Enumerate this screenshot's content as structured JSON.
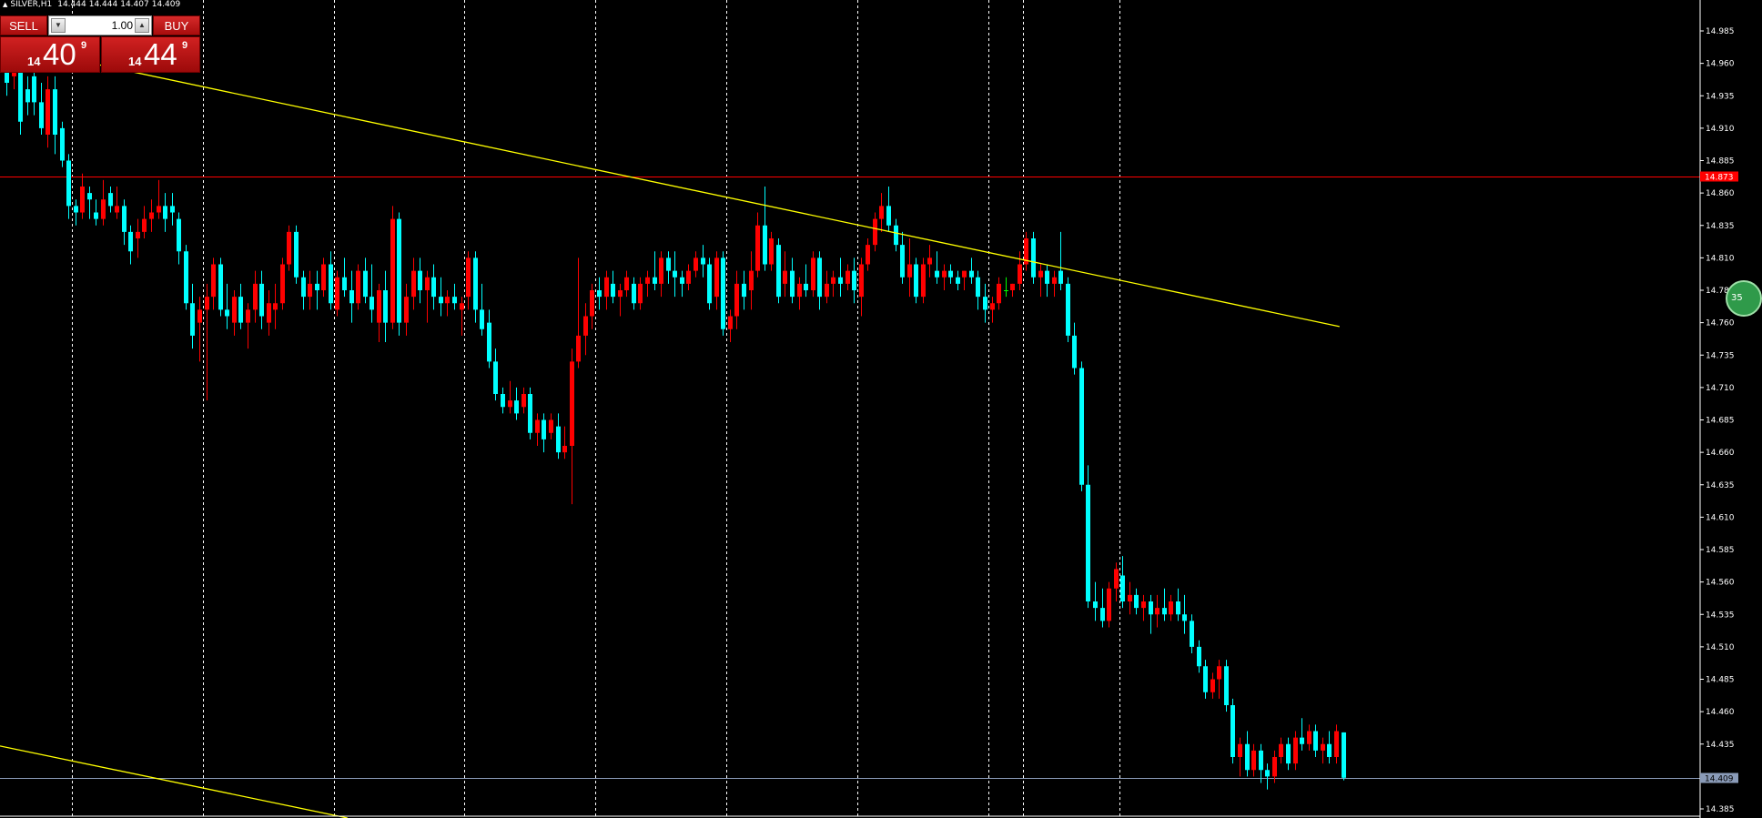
{
  "header": {
    "symbol_timeframe": "SILVER,H1",
    "open": "14.444",
    "high": "14.444",
    "low": "14.407",
    "close": "14.409"
  },
  "trade_panel": {
    "sell_label": "SELL",
    "buy_label": "BUY",
    "lot_value": "1.00",
    "sell_price_small": "14",
    "sell_price_big": "40",
    "sell_price_sup": "9",
    "buy_price_small": "14",
    "buy_price_big": "44",
    "buy_price_sup": "9"
  },
  "side_badge": {
    "text": "35"
  },
  "chart_data": {
    "type": "candlestick",
    "symbol": "SILVER",
    "timeframe": "H1",
    "ylim": [
      14.375,
      15.0
    ],
    "y_ticks": [
      "14.985",
      "14.960",
      "14.935",
      "14.910",
      "14.885",
      "14.860",
      "14.835",
      "14.810",
      "14.785",
      "14.760",
      "14.735",
      "14.710",
      "14.685",
      "14.660",
      "14.635",
      "14.610",
      "14.585",
      "14.560",
      "14.535",
      "14.510",
      "14.485",
      "14.460",
      "14.435",
      "14.410",
      "14.385"
    ],
    "bid_line": {
      "price": 14.409,
      "label": "14.409",
      "color": "#8a9bb8"
    },
    "horizontal_line": {
      "price": 14.873,
      "label": "14.873",
      "color": "#ff0000"
    },
    "trendlines": [
      {
        "from_bar": 0,
        "from_price": 14.975,
        "to_bar": 193.5,
        "to_price": 14.757,
        "color": "#ffff00"
      },
      {
        "from_bar": 0,
        "from_price": 14.4335,
        "to_bar": 49.5,
        "to_price": 14.378,
        "color": "#ffff00"
      }
    ],
    "period_separators_after_bar": [
      9.5,
      28.5,
      47.5,
      66.5,
      85.5,
      104.5,
      123.5,
      142.5,
      147.5,
      161.5
    ],
    "colors": {
      "bull": "#ff0000",
      "bear": "#00ffff",
      "doji": "#00ff00",
      "background": "#000000",
      "separator": "#ffffff"
    },
    "candles": [
      [
        14.955,
        14.965,
        14.935,
        14.945
      ],
      [
        14.95,
        14.96,
        14.94,
        14.955
      ],
      [
        14.955,
        14.96,
        14.905,
        14.915
      ],
      [
        14.94,
        14.95,
        14.92,
        14.93
      ],
      [
        14.95,
        14.96,
        14.92,
        14.93
      ],
      [
        14.93,
        14.945,
        14.905,
        14.91
      ],
      [
        14.905,
        14.95,
        14.895,
        14.94
      ],
      [
        14.94,
        14.95,
        14.89,
        14.905
      ],
      [
        14.91,
        14.915,
        14.88,
        14.885
      ],
      [
        14.885,
        14.89,
        14.84,
        14.85
      ],
      [
        14.85,
        14.855,
        14.835,
        14.845
      ],
      [
        14.845,
        14.875,
        14.84,
        14.865
      ],
      [
        14.86,
        14.865,
        14.84,
        14.855
      ],
      [
        14.845,
        14.855,
        14.835,
        14.84
      ],
      [
        14.84,
        14.87,
        14.835,
        14.855
      ],
      [
        14.86,
        14.865,
        14.845,
        14.85
      ],
      [
        14.845,
        14.865,
        14.84,
        14.85
      ],
      [
        14.85,
        14.855,
        14.82,
        14.83
      ],
      [
        14.83,
        14.835,
        14.805,
        14.815
      ],
      [
        14.825,
        14.84,
        14.81,
        14.83
      ],
      [
        14.83,
        14.85,
        14.825,
        14.84
      ],
      [
        14.84,
        14.855,
        14.83,
        14.845
      ],
      [
        14.845,
        14.87,
        14.84,
        14.85
      ],
      [
        14.85,
        14.86,
        14.83,
        14.84
      ],
      [
        14.85,
        14.86,
        14.835,
        14.845
      ],
      [
        14.84,
        14.845,
        14.805,
        14.815
      ],
      [
        14.815,
        14.82,
        14.77,
        14.775
      ],
      [
        14.775,
        14.79,
        14.74,
        14.75
      ],
      [
        14.76,
        14.78,
        14.73,
        14.77
      ],
      [
        14.77,
        14.79,
        14.7,
        14.78
      ],
      [
        14.78,
        14.81,
        14.77,
        14.805
      ],
      [
        14.805,
        14.81,
        14.765,
        14.77
      ],
      [
        14.77,
        14.79,
        14.755,
        14.765
      ],
      [
        14.76,
        14.785,
        14.75,
        14.78
      ],
      [
        14.78,
        14.79,
        14.755,
        14.76
      ],
      [
        14.76,
        14.775,
        14.74,
        14.77
      ],
      [
        14.77,
        14.8,
        14.76,
        14.79
      ],
      [
        14.79,
        14.8,
        14.755,
        14.765
      ],
      [
        14.76,
        14.785,
        14.75,
        14.775
      ],
      [
        14.77,
        14.79,
        14.755,
        14.775
      ],
      [
        14.775,
        14.81,
        14.77,
        14.805
      ],
      [
        14.805,
        14.835,
        14.8,
        14.83
      ],
      [
        14.83,
        14.835,
        14.79,
        14.795
      ],
      [
        14.795,
        14.8,
        14.77,
        14.78
      ],
      [
        14.78,
        14.8,
        14.77,
        14.79
      ],
      [
        14.79,
        14.8,
        14.77,
        14.785
      ],
      [
        14.785,
        14.81,
        14.78,
        14.805
      ],
      [
        14.805,
        14.815,
        14.77,
        14.775
      ],
      [
        14.77,
        14.8,
        14.765,
        14.795
      ],
      [
        14.795,
        14.81,
        14.78,
        14.785
      ],
      [
        14.785,
        14.8,
        14.76,
        14.775
      ],
      [
        14.775,
        14.805,
        14.77,
        14.8
      ],
      [
        14.8,
        14.81,
        14.775,
        14.78
      ],
      [
        14.78,
        14.805,
        14.76,
        14.77
      ],
      [
        14.76,
        14.79,
        14.745,
        14.785
      ],
      [
        14.785,
        14.8,
        14.745,
        14.76
      ],
      [
        14.76,
        14.85,
        14.755,
        14.84
      ],
      [
        14.84,
        14.845,
        14.75,
        14.76
      ],
      [
        14.76,
        14.79,
        14.75,
        14.78
      ],
      [
        14.78,
        14.81,
        14.77,
        14.8
      ],
      [
        14.8,
        14.81,
        14.775,
        14.785
      ],
      [
        14.785,
        14.8,
        14.76,
        14.795
      ],
      [
        14.795,
        14.805,
        14.77,
        14.78
      ],
      [
        14.78,
        14.795,
        14.765,
        14.775
      ],
      [
        14.775,
        14.785,
        14.765,
        14.78
      ],
      [
        14.78,
        14.79,
        14.77,
        14.775
      ],
      [
        14.77,
        14.78,
        14.75,
        14.775
      ],
      [
        14.78,
        14.815,
        14.77,
        14.81
      ],
      [
        14.81,
        14.815,
        14.76,
        14.77
      ],
      [
        14.77,
        14.79,
        14.75,
        14.755
      ],
      [
        14.76,
        14.77,
        14.725,
        14.73
      ],
      [
        14.73,
        14.74,
        14.7,
        14.705
      ],
      [
        14.705,
        14.71,
        14.69,
        14.695
      ],
      [
        14.695,
        14.715,
        14.69,
        14.7
      ],
      [
        14.7,
        14.71,
        14.685,
        14.69
      ],
      [
        14.695,
        14.71,
        14.69,
        14.705
      ],
      [
        14.705,
        14.71,
        14.67,
        14.675
      ],
      [
        14.675,
        14.69,
        14.665,
        14.685
      ],
      [
        14.685,
        14.69,
        14.66,
        14.67
      ],
      [
        14.675,
        14.69,
        14.67,
        14.685
      ],
      [
        14.68,
        14.69,
        14.655,
        14.66
      ],
      [
        14.66,
        14.68,
        14.655,
        14.665
      ],
      [
        14.665,
        14.74,
        14.62,
        14.73
      ],
      [
        14.73,
        14.81,
        14.725,
        14.75
      ],
      [
        14.75,
        14.775,
        14.735,
        14.765
      ],
      [
        14.765,
        14.79,
        14.755,
        14.785
      ],
      [
        14.785,
        14.795,
        14.77,
        14.78
      ],
      [
        14.78,
        14.8,
        14.77,
        14.795
      ],
      [
        14.79,
        14.8,
        14.775,
        14.78
      ],
      [
        14.78,
        14.79,
        14.765,
        14.785
      ],
      [
        14.785,
        14.8,
        14.78,
        14.795
      ],
      [
        14.79,
        14.795,
        14.77,
        14.775
      ],
      [
        14.775,
        14.795,
        14.77,
        14.79
      ],
      [
        14.79,
        14.8,
        14.78,
        14.795
      ],
      [
        14.795,
        14.815,
        14.785,
        14.79
      ],
      [
        14.79,
        14.815,
        14.78,
        14.81
      ],
      [
        14.81,
        14.815,
        14.79,
        14.8
      ],
      [
        14.8,
        14.815,
        14.78,
        14.795
      ],
      [
        14.795,
        14.8,
        14.78,
        14.79
      ],
      [
        14.79,
        14.805,
        14.785,
        14.8
      ],
      [
        14.8,
        14.815,
        14.795,
        14.81
      ],
      [
        14.81,
        14.82,
        14.795,
        14.805
      ],
      [
        14.805,
        14.81,
        14.77,
        14.775
      ],
      [
        14.78,
        14.815,
        14.77,
        14.81
      ],
      [
        14.81,
        14.815,
        14.75,
        14.755
      ],
      [
        14.755,
        14.77,
        14.745,
        14.765
      ],
      [
        14.765,
        14.8,
        14.755,
        14.79
      ],
      [
        14.79,
        14.8,
        14.77,
        14.78
      ],
      [
        14.785,
        14.815,
        14.77,
        14.8
      ],
      [
        14.8,
        14.845,
        14.795,
        14.835
      ],
      [
        14.835,
        14.865,
        14.8,
        14.805
      ],
      [
        14.805,
        14.83,
        14.8,
        14.825
      ],
      [
        14.82,
        14.825,
        14.775,
        14.78
      ],
      [
        14.79,
        14.815,
        14.78,
        14.8
      ],
      [
        14.8,
        14.81,
        14.775,
        14.78
      ],
      [
        14.78,
        14.795,
        14.77,
        14.79
      ],
      [
        14.79,
        14.805,
        14.78,
        14.785
      ],
      [
        14.785,
        14.815,
        14.78,
        14.81
      ],
      [
        14.81,
        14.815,
        14.77,
        14.78
      ],
      [
        14.78,
        14.8,
        14.775,
        14.79
      ],
      [
        14.79,
        14.8,
        14.78,
        14.795
      ],
      [
        14.795,
        14.81,
        14.78,
        14.79
      ],
      [
        14.79,
        14.805,
        14.785,
        14.8
      ],
      [
        14.8,
        14.81,
        14.775,
        14.785
      ],
      [
        14.78,
        14.81,
        14.765,
        14.805
      ],
      [
        14.805,
        14.825,
        14.8,
        14.82
      ],
      [
        14.82,
        14.845,
        14.815,
        14.84
      ],
      [
        14.84,
        14.86,
        14.83,
        14.85
      ],
      [
        14.85,
        14.865,
        14.83,
        14.835
      ],
      [
        14.835,
        14.84,
        14.815,
        14.82
      ],
      [
        14.82,
        14.83,
        14.79,
        14.795
      ],
      [
        14.795,
        14.825,
        14.78,
        14.805
      ],
      [
        14.805,
        14.81,
        14.775,
        14.78
      ],
      [
        14.78,
        14.81,
        14.775,
        14.805
      ],
      [
        14.805,
        14.82,
        14.795,
        14.81
      ],
      [
        14.8,
        14.815,
        14.79,
        14.795
      ],
      [
        14.795,
        14.805,
        14.785,
        14.8
      ],
      [
        14.8,
        14.805,
        14.79,
        14.795
      ],
      [
        14.795,
        14.8,
        14.785,
        14.79
      ],
      [
        14.795,
        14.8,
        14.785,
        14.8
      ],
      [
        14.8,
        14.81,
        14.79,
        14.795
      ],
      [
        14.795,
        14.8,
        14.77,
        14.78
      ],
      [
        14.78,
        14.79,
        14.76,
        14.77
      ],
      [
        14.77,
        14.78,
        14.76,
        14.775
      ],
      [
        14.775,
        14.795,
        14.77,
        14.79
      ],
      [
        14.785,
        14.795,
        14.78,
        14.785
      ],
      [
        14.785,
        14.79,
        14.78,
        14.79
      ],
      [
        14.79,
        14.815,
        14.785,
        14.805
      ],
      [
        14.805,
        14.83,
        14.8,
        14.825
      ],
      [
        14.825,
        14.83,
        14.79,
        14.795
      ],
      [
        14.795,
        14.805,
        14.78,
        14.8
      ],
      [
        14.8,
        14.805,
        14.78,
        14.79
      ],
      [
        14.79,
        14.8,
        14.78,
        14.795
      ],
      [
        14.8,
        14.83,
        14.785,
        14.79
      ],
      [
        14.79,
        14.795,
        14.745,
        14.75
      ],
      [
        14.75,
        14.76,
        14.72,
        14.725
      ],
      [
        14.725,
        14.73,
        14.63,
        14.635
      ],
      [
        14.635,
        14.65,
        14.54,
        14.545
      ],
      [
        14.545,
        14.56,
        14.53,
        14.54
      ],
      [
        14.54,
        14.555,
        14.525,
        14.53
      ],
      [
        14.53,
        14.56,
        14.525,
        14.555
      ],
      [
        14.555,
        14.575,
        14.545,
        14.57
      ],
      [
        14.565,
        14.58,
        14.54,
        14.545
      ],
      [
        14.545,
        14.56,
        14.535,
        14.55
      ],
      [
        14.55,
        14.555,
        14.535,
        14.54
      ],
      [
        14.54,
        14.55,
        14.53,
        14.545
      ],
      [
        14.545,
        14.55,
        14.52,
        14.535
      ],
      [
        14.535,
        14.55,
        14.525,
        14.54
      ],
      [
        14.54,
        14.555,
        14.53,
        14.535
      ],
      [
        14.535,
        14.55,
        14.53,
        14.545
      ],
      [
        14.545,
        14.555,
        14.53,
        14.535
      ],
      [
        14.535,
        14.55,
        14.52,
        14.53
      ],
      [
        14.53,
        14.535,
        14.505,
        14.51
      ],
      [
        14.51,
        14.515,
        14.49,
        14.495
      ],
      [
        14.495,
        14.5,
        14.47,
        14.475
      ],
      [
        14.475,
        14.49,
        14.47,
        14.485
      ],
      [
        14.485,
        14.5,
        14.47,
        14.495
      ],
      [
        14.495,
        14.5,
        14.46,
        14.465
      ],
      [
        14.465,
        14.47,
        14.42,
        14.425
      ],
      [
        14.425,
        14.44,
        14.41,
        14.435
      ],
      [
        14.435,
        14.445,
        14.41,
        14.415
      ],
      [
        14.415,
        14.435,
        14.41,
        14.43
      ],
      [
        14.43,
        14.435,
        14.405,
        14.415
      ],
      [
        14.415,
        14.42,
        14.4,
        14.41
      ],
      [
        14.41,
        14.43,
        14.405,
        14.425
      ],
      [
        14.425,
        14.44,
        14.42,
        14.435
      ],
      [
        14.435,
        14.44,
        14.415,
        14.42
      ],
      [
        14.42,
        14.445,
        14.415,
        14.44
      ],
      [
        14.44,
        14.455,
        14.43,
        14.435
      ],
      [
        14.435,
        14.45,
        14.43,
        14.445
      ],
      [
        14.445,
        14.45,
        14.425,
        14.43
      ],
      [
        14.43,
        14.44,
        14.42,
        14.435
      ],
      [
        14.435,
        14.445,
        14.42,
        14.425
      ],
      [
        14.425,
        14.45,
        14.42,
        14.445
      ],
      [
        14.444,
        14.444,
        14.407,
        14.409
      ]
    ]
  }
}
